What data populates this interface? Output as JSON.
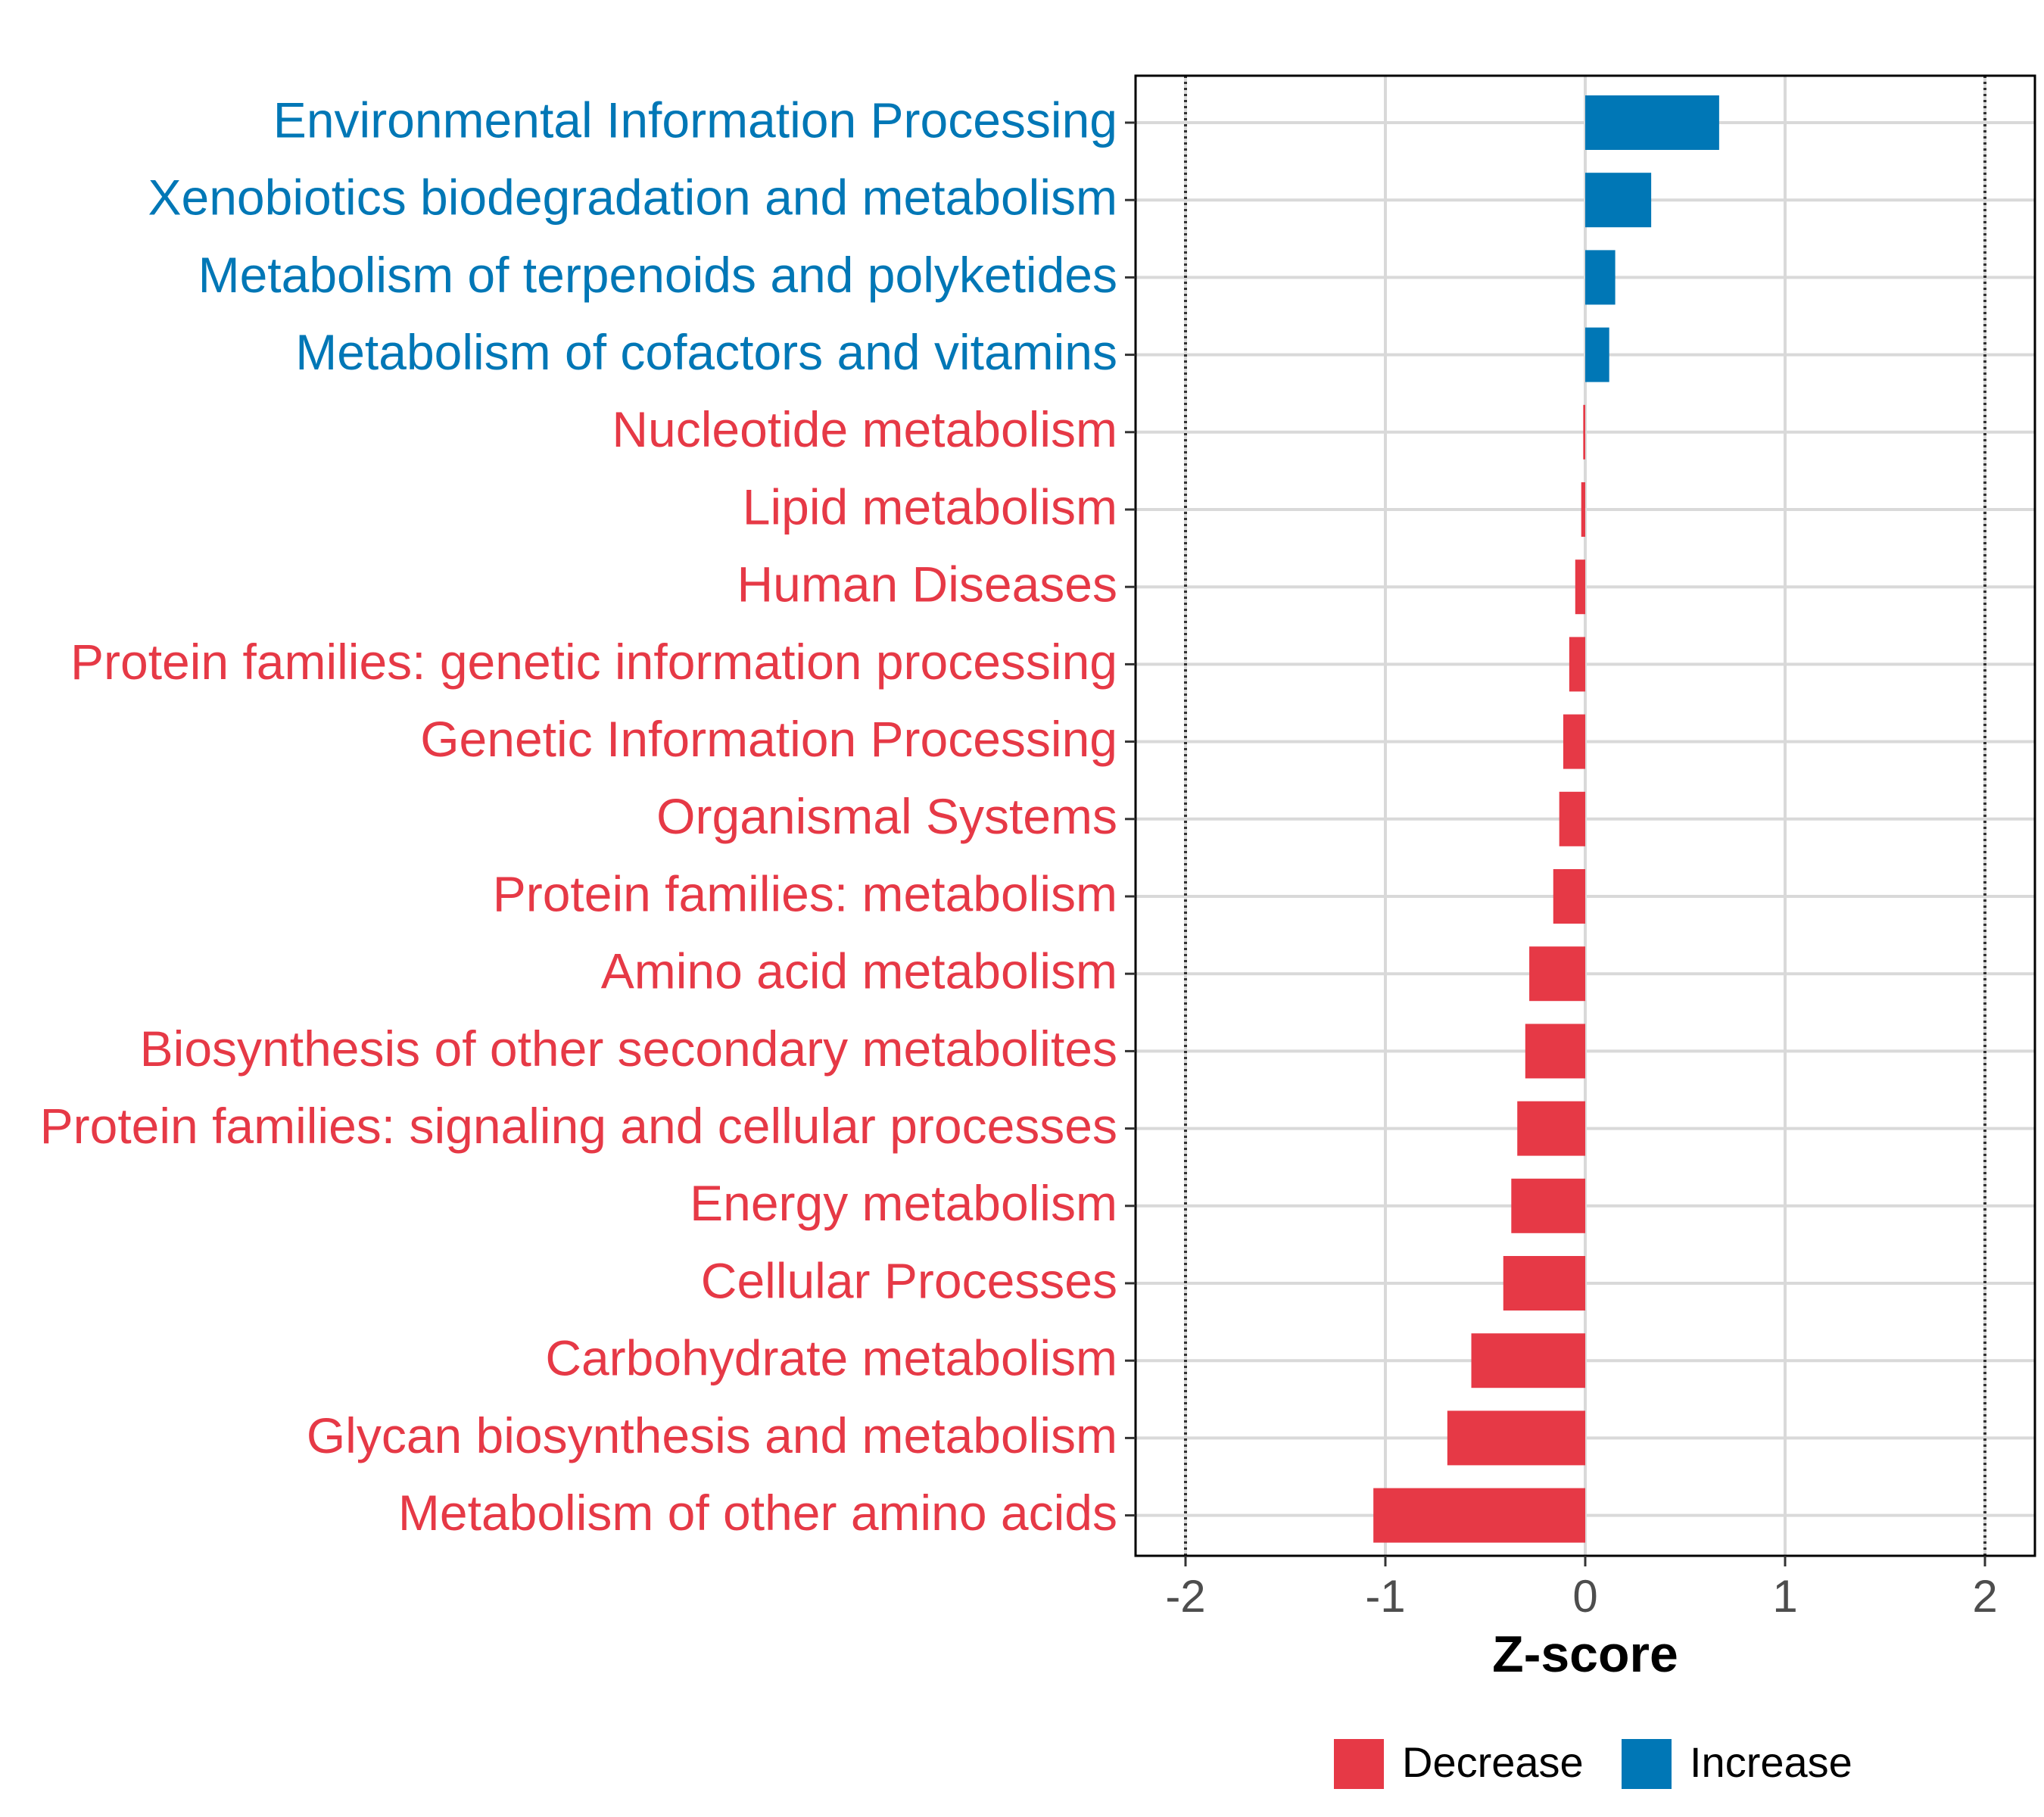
{
  "chart_data": {
    "type": "bar",
    "orientation": "horizontal",
    "xlabel": "Z-score",
    "xlim": [
      -2.25,
      2.25
    ],
    "x_ticks": [
      -2,
      -1,
      0,
      1,
      2
    ],
    "x_tick_labels": [
      "-2",
      "-1",
      "0",
      "1",
      "2"
    ],
    "reference_lines": [
      -2,
      2
    ],
    "grid": true,
    "colors": {
      "Decrease": "#E63946",
      "Increase": "#0077B6"
    },
    "categories": [
      "Environmental Information Processing",
      "Xenobiotics biodegradation and metabolism",
      "Metabolism of terpenoids and polyketides",
      "Metabolism of cofactors and vitamins",
      "Nucleotide metabolism",
      "Lipid metabolism",
      "Human Diseases",
      "Protein families: genetic information processing",
      "Genetic Information Processing",
      "Organismal Systems",
      "Protein families: metabolism",
      "Amino acid metabolism",
      "Biosynthesis of other secondary metabolites",
      "Protein families: signaling and cellular processes",
      "Energy metabolism",
      "Cellular Processes",
      "Carbohydrate metabolism",
      "Glycan biosynthesis and metabolism",
      "Metabolism of other amino acids"
    ],
    "values": [
      0.67,
      0.33,
      0.15,
      0.12,
      -0.01,
      -0.02,
      -0.05,
      -0.08,
      -0.11,
      -0.13,
      -0.16,
      -0.28,
      -0.3,
      -0.34,
      -0.37,
      -0.41,
      -0.57,
      -0.69,
      -1.06
    ],
    "groups": [
      "Increase",
      "Increase",
      "Increase",
      "Increase",
      "Decrease",
      "Decrease",
      "Decrease",
      "Decrease",
      "Decrease",
      "Decrease",
      "Decrease",
      "Decrease",
      "Decrease",
      "Decrease",
      "Decrease",
      "Decrease",
      "Decrease",
      "Decrease",
      "Decrease"
    ],
    "legend": {
      "position": "bottom",
      "entries": [
        {
          "label": "Decrease",
          "color": "#E63946"
        },
        {
          "label": "Increase",
          "color": "#0077B6"
        }
      ]
    }
  }
}
